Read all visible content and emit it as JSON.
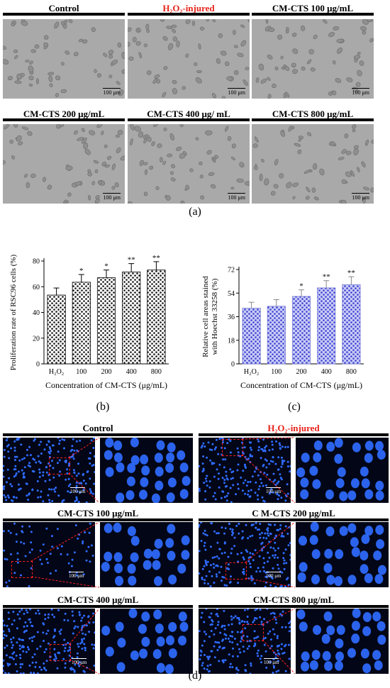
{
  "panel_a": {
    "label": "(a)",
    "images": [
      {
        "title": "Control",
        "scale": "100 μm",
        "highlight": false
      },
      {
        "title": "H₂O₂-injured",
        "scale": "100 μm",
        "highlight": true
      },
      {
        "title": "CM-CTS 100 μg/mL",
        "scale": "100 μm",
        "highlight": false
      },
      {
        "title": "CM-CTS 200 μg/mL",
        "scale": "100 μm",
        "highlight": false
      },
      {
        "title": "CM-CTS 400 μg/ mL",
        "scale": "100 μm",
        "highlight": false
      },
      {
        "title": "CM-CTS 800 μg/mL",
        "scale": "100 μm",
        "highlight": false
      }
    ]
  },
  "panel_b": {
    "label": "(b)"
  },
  "panel_c": {
    "label": "(c)"
  },
  "panel_d": {
    "label": "(d)",
    "images": [
      {
        "title": "Control",
        "scale": "100 μm",
        "highlight": false
      },
      {
        "title": "H₂O₂-injured",
        "scale": "100 μm",
        "highlight": true
      },
      {
        "title": "CM-CTS 100 μg/mL",
        "scale": "100 μm",
        "highlight": false
      },
      {
        "title": "C M-CTS 200 μg/mL",
        "scale": "100 μm",
        "highlight": false
      },
      {
        "title": "CM-CTS 400 μg/mL",
        "scale": "100 μm",
        "highlight": false
      },
      {
        "title": "CM-CTS 800 μg/mL",
        "scale": "100 μm",
        "highlight": false
      }
    ]
  },
  "colors": {
    "brightfield": "#a9a9a9",
    "fluorescence_bg": "#020616",
    "nucleus": "#2f6bff",
    "highlight_text": "#e8231b",
    "chart_c_fill": "#3a3fcf"
  },
  "chart_data": [
    {
      "type": "bar",
      "panel": "b",
      "categories": [
        "H₂O₂",
        "100",
        "200",
        "400",
        "800"
      ],
      "values": [
        53.5,
        63.5,
        67,
        71.5,
        73
      ],
      "errors": [
        5.5,
        6,
        6,
        6.5,
        6.5
      ],
      "significance": [
        "",
        "*",
        "*",
        "**",
        "**"
      ],
      "ylabel": "Proliferation rate of RSC96 cells (%)",
      "xlabel": "Concentration of CM-CTS (μg/mL)",
      "ylim": [
        0,
        80
      ],
      "yticks": [
        0,
        20,
        40,
        60,
        80
      ],
      "fill": "black-dotted"
    },
    {
      "type": "bar",
      "panel": "c",
      "categories": [
        "H₂O₂",
        "100",
        "200",
        "400",
        "800"
      ],
      "values": [
        42.5,
        44,
        51.5,
        58,
        60.5
      ],
      "errors": [
        4.5,
        5,
        5,
        5.5,
        6
      ],
      "significance": [
        "",
        "",
        "*",
        "**",
        "**"
      ],
      "ylabel_lines": [
        "Relative cell areas stained",
        "with Hoechst 33258 (%)"
      ],
      "xlabel": "Concentration of CM-CTS (μg/mL)",
      "ylim": [
        0,
        72
      ],
      "yticks": [
        0,
        18,
        36,
        54,
        72
      ],
      "fill": "blue-dotted"
    }
  ]
}
